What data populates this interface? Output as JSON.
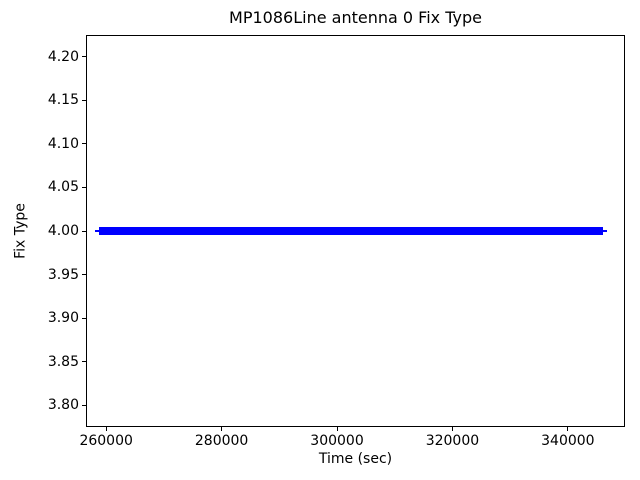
{
  "chart_data": {
    "type": "line",
    "title": "MP1086Line antenna 0 Fix Type",
    "xlabel": "Time (sec)",
    "ylabel": "Fix Type",
    "xlim": [
      256500,
      349900
    ],
    "ylim": [
      3.775,
      4.225
    ],
    "xticks": {
      "values": [
        260000,
        280000,
        300000,
        320000,
        340000
      ],
      "labels": [
        "260000",
        "280000",
        "300000",
        "320000",
        "340000"
      ]
    },
    "yticks": {
      "values": [
        3.8,
        3.85,
        3.9,
        3.95,
        4.0,
        4.05,
        4.1,
        4.15,
        4.2
      ],
      "labels": [
        "3.80",
        "3.85",
        "3.90",
        "3.95",
        "4.00",
        "4.05",
        "4.10",
        "4.15",
        "4.20"
      ]
    },
    "grid": false,
    "series": [
      {
        "name": "antenna-0-fix-type",
        "color": "#0000ff",
        "marker": "+",
        "y": 4.0,
        "x_start": 258000,
        "x_end": 346700
      }
    ]
  }
}
